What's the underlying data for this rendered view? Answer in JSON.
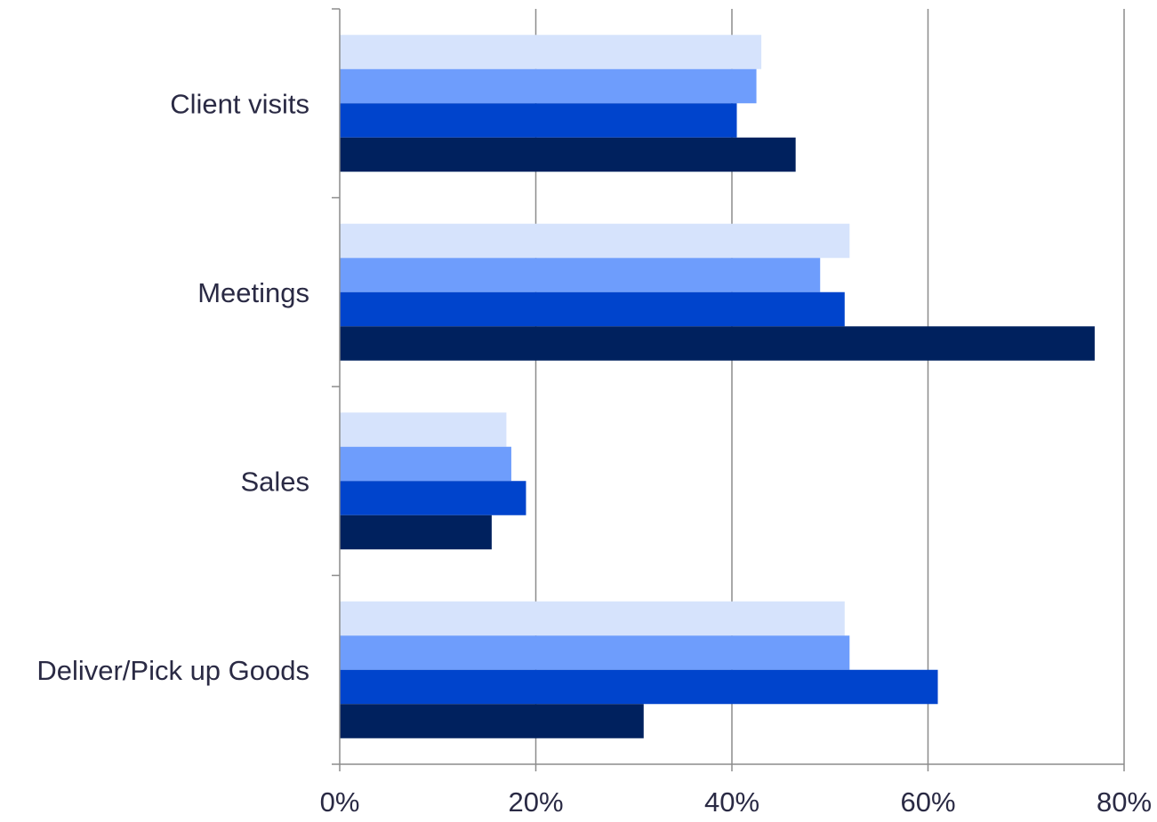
{
  "chart_data": {
    "type": "bar",
    "orientation": "horizontal",
    "categories": [
      "Client visits",
      "Meetings",
      "Sales",
      "Deliver/Pick up Goods"
    ],
    "series": [
      {
        "values": [
          43,
          52,
          17,
          51.5
        ],
        "color": "#d6e3fc"
      },
      {
        "values": [
          42.5,
          49,
          17.5,
          52
        ],
        "color": "#6e9dfc"
      },
      {
        "values": [
          40.5,
          51.5,
          19,
          61
        ],
        "color": "#0044cc"
      },
      {
        "values": [
          46.5,
          77,
          15.5,
          31
        ],
        "color": "#00215e"
      }
    ],
    "x_ticks": [
      "0%",
      "20%",
      "40%",
      "60%",
      "80%"
    ],
    "xlim": [
      0,
      80
    ],
    "grid": true,
    "legend": "none"
  }
}
